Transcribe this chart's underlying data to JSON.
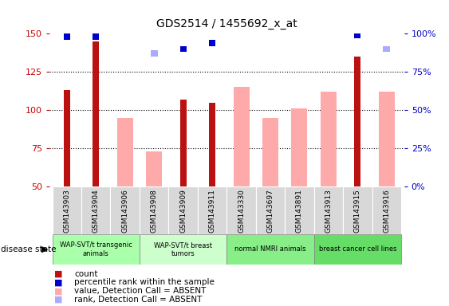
{
  "title": "GDS2514 / 1455692_x_at",
  "samples": [
    "GSM143903",
    "GSM143904",
    "GSM143906",
    "GSM143908",
    "GSM143909",
    "GSM143911",
    "GSM143330",
    "GSM143697",
    "GSM143891",
    "GSM143913",
    "GSM143915",
    "GSM143916"
  ],
  "count_values": [
    113,
    145,
    null,
    null,
    107,
    105,
    null,
    null,
    null,
    null,
    135,
    null
  ],
  "percentile_rank": [
    98,
    98,
    null,
    null,
    90,
    94,
    null,
    null,
    null,
    null,
    99,
    null
  ],
  "absent_value": [
    null,
    null,
    95,
    73,
    null,
    null,
    115,
    95,
    101,
    112,
    null,
    112
  ],
  "absent_rank": [
    null,
    null,
    null,
    87,
    null,
    null,
    null,
    null,
    null,
    null,
    null,
    90
  ],
  "ylim_left": [
    50,
    150
  ],
  "ylim_right": [
    0,
    100
  ],
  "yticks_left": [
    50,
    75,
    100,
    125,
    150
  ],
  "yticks_right": [
    0,
    25,
    50,
    75,
    100
  ],
  "ytick_labels_right": [
    "0%",
    "25%",
    "50%",
    "75%",
    "100%"
  ],
  "groups": [
    {
      "label": "WAP-SVT/t transgenic\nanimals",
      "indices": [
        0,
        1,
        2
      ],
      "color": "#aaffaa"
    },
    {
      "label": "WAP-SVT/t breast\ntumors",
      "indices": [
        3,
        4,
        5
      ],
      "color": "#ccffcc"
    },
    {
      "label": "normal NMRI animals",
      "indices": [
        6,
        7,
        8
      ],
      "color": "#88ee88"
    },
    {
      "label": "breast cancer cell lines",
      "indices": [
        9,
        10,
        11
      ],
      "color": "#66dd66"
    }
  ],
  "count_color": "#bb1111",
  "percentile_color": "#0000cc",
  "absent_value_color": "#ffaaaa",
  "absent_rank_color": "#aaaaff",
  "bg_color": "#ffffff",
  "label_color_left": "#cc0000",
  "label_color_right": "#0000cc",
  "absent_rank_mapped": [
    null,
    null,
    null,
    87,
    null,
    null,
    null,
    null,
    null,
    null,
    null,
    90
  ]
}
